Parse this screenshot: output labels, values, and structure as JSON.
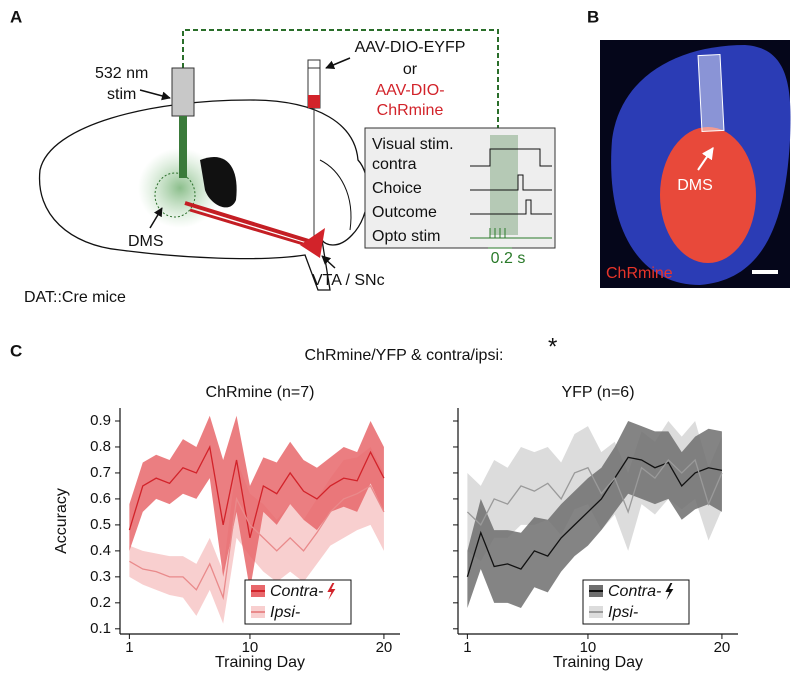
{
  "panel_a": {
    "label": "A",
    "fiber_label": [
      "532 nm",
      "stim"
    ],
    "virus": [
      "AAV-DIO-EYFP",
      "or",
      "AAV-DIO-",
      "ChRmine"
    ],
    "inset_rows": [
      "Visual stim.",
      "contra",
      "Choice",
      "Outcome",
      "Opto stim"
    ],
    "scale": "0.2 s",
    "region": "DMS",
    "target": "VTA / SNc",
    "mouse": "DAT::Cre mice"
  },
  "panel_b": {
    "label": "B",
    "region": "DMS",
    "stain": "ChRmine"
  },
  "panel_c": {
    "label": "C",
    "title": "ChRmine/YFP & contra/ipsi:",
    "significance": "*"
  },
  "chart_data": [
    {
      "type": "line",
      "title": "ChRmine (n=7)",
      "xlabel": "Training Day",
      "ylabel": "Accuracy",
      "x": [
        1,
        2,
        3,
        4,
        5,
        6,
        7,
        8,
        9,
        10,
        11,
        12,
        13,
        14,
        15,
        16,
        17,
        18,
        19,
        20
      ],
      "xlim": [
        0.3,
        21.2
      ],
      "xticks": [
        1,
        10,
        20
      ],
      "ylim": [
        0.08,
        0.95
      ],
      "yticks": [
        0.1,
        0.2,
        0.3,
        0.4,
        0.5,
        0.6,
        0.7,
        0.8,
        0.9
      ],
      "ytick_labels": true,
      "legend": "lower right",
      "series": [
        {
          "name": "Contra-",
          "color": "#d2232a",
          "band_color": "#e8676b",
          "values": [
            0.48,
            0.65,
            0.68,
            0.66,
            0.72,
            0.7,
            0.8,
            0.5,
            0.75,
            0.45,
            0.65,
            0.62,
            0.7,
            0.63,
            0.6,
            0.65,
            0.68,
            0.67,
            0.78,
            0.68
          ],
          "lower": [
            0.4,
            0.55,
            0.6,
            0.58,
            0.62,
            0.6,
            0.68,
            0.3,
            0.55,
            0.25,
            0.55,
            0.5,
            0.58,
            0.52,
            0.48,
            0.55,
            0.57,
            0.55,
            0.66,
            0.55
          ],
          "upper": [
            0.58,
            0.74,
            0.77,
            0.75,
            0.83,
            0.8,
            0.92,
            0.75,
            0.92,
            0.65,
            0.76,
            0.74,
            0.82,
            0.75,
            0.72,
            0.76,
            0.8,
            0.78,
            0.9,
            0.8
          ]
        },
        {
          "name": "Ipsi-",
          "color": "#e98a8b",
          "band_color": "#f8cfcf",
          "values": [
            0.36,
            0.33,
            0.32,
            0.3,
            0.3,
            0.25,
            0.35,
            0.22,
            0.6,
            0.5,
            0.45,
            0.4,
            0.45,
            0.4,
            0.47,
            0.55,
            0.6,
            0.62,
            0.65,
            0.55
          ],
          "lower": [
            0.3,
            0.27,
            0.25,
            0.23,
            0.22,
            0.15,
            0.25,
            0.12,
            0.45,
            0.38,
            0.32,
            0.28,
            0.32,
            0.28,
            0.35,
            0.42,
            0.45,
            0.48,
            0.5,
            0.4
          ],
          "upper": [
            0.42,
            0.4,
            0.39,
            0.38,
            0.38,
            0.35,
            0.45,
            0.32,
            0.75,
            0.62,
            0.58,
            0.52,
            0.58,
            0.52,
            0.6,
            0.68,
            0.75,
            0.76,
            0.8,
            0.7
          ]
        }
      ]
    },
    {
      "type": "line",
      "title": "YFP (n=6)",
      "xlabel": "Training Day",
      "x": [
        1,
        2,
        3,
        4,
        5,
        6,
        7,
        8,
        9,
        10,
        11,
        12,
        13,
        14,
        15,
        16,
        17,
        18,
        19,
        20
      ],
      "xlim": [
        0.3,
        21.2
      ],
      "xticks": [
        1,
        10,
        20
      ],
      "ylim": [
        0.08,
        0.95
      ],
      "yticks": [
        0.1,
        0.2,
        0.3,
        0.4,
        0.5,
        0.6,
        0.7,
        0.8,
        0.9
      ],
      "ytick_labels": false,
      "legend": "lower right",
      "series": [
        {
          "name": "Contra-",
          "color": "#111111",
          "band_color": "#6e6e6e",
          "values": [
            0.3,
            0.47,
            0.34,
            0.35,
            0.33,
            0.4,
            0.38,
            0.45,
            0.5,
            0.55,
            0.6,
            0.68,
            0.76,
            0.75,
            0.72,
            0.74,
            0.65,
            0.7,
            0.72,
            0.71
          ],
          "lower": [
            0.18,
            0.33,
            0.2,
            0.2,
            0.18,
            0.26,
            0.24,
            0.32,
            0.38,
            0.42,
            0.48,
            0.55,
            0.62,
            0.6,
            0.58,
            0.6,
            0.52,
            0.56,
            0.58,
            0.55
          ],
          "upper": [
            0.4,
            0.6,
            0.48,
            0.48,
            0.47,
            0.53,
            0.52,
            0.58,
            0.63,
            0.68,
            0.72,
            0.8,
            0.9,
            0.88,
            0.86,
            0.86,
            0.78,
            0.84,
            0.87,
            0.86
          ]
        },
        {
          "name": "Ipsi-",
          "color": "#9a9a9a",
          "band_color": "#dcdcdc",
          "values": [
            0.55,
            0.5,
            0.6,
            0.58,
            0.65,
            0.63,
            0.66,
            0.6,
            0.7,
            0.72,
            0.62,
            0.68,
            0.55,
            0.72,
            0.68,
            0.75,
            0.7,
            0.75,
            0.58,
            0.7
          ],
          "lower": [
            0.4,
            0.36,
            0.45,
            0.45,
            0.5,
            0.5,
            0.52,
            0.46,
            0.56,
            0.58,
            0.48,
            0.54,
            0.4,
            0.58,
            0.54,
            0.6,
            0.56,
            0.6,
            0.44,
            0.56
          ],
          "upper": [
            0.7,
            0.65,
            0.75,
            0.72,
            0.8,
            0.78,
            0.8,
            0.74,
            0.85,
            0.88,
            0.78,
            0.82,
            0.7,
            0.86,
            0.82,
            0.9,
            0.84,
            0.9,
            0.72,
            0.84
          ]
        }
      ]
    }
  ]
}
